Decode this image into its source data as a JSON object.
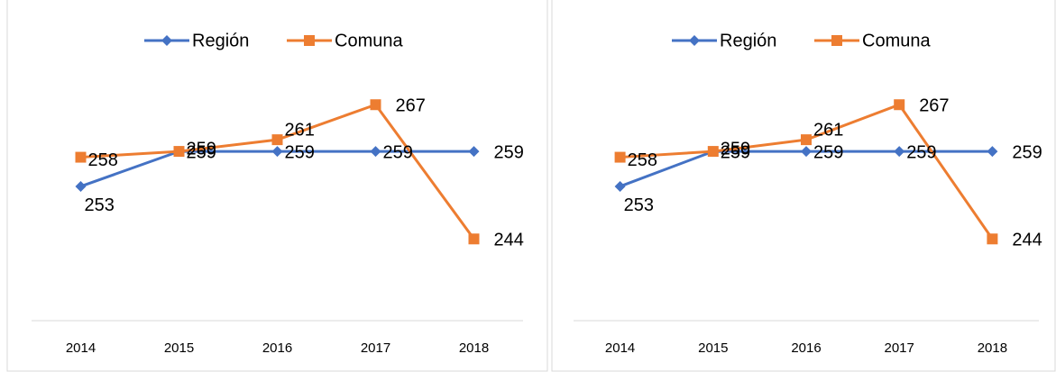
{
  "chart_data": [
    {
      "type": "line",
      "categories": [
        "2014",
        "2015",
        "2016",
        "2017",
        "2018"
      ],
      "series": [
        {
          "name": "Región",
          "color": "#4472c4",
          "values": [
            253,
            259,
            259,
            259,
            259
          ]
        },
        {
          "name": "Comuna",
          "color": "#ed7d31",
          "values": [
            258,
            259,
            261,
            267,
            244
          ]
        }
      ],
      "ylim": [
        230,
        280
      ],
      "legend": "top"
    },
    {
      "type": "line",
      "categories": [
        "2014",
        "2015",
        "2016",
        "2017",
        "2018"
      ],
      "series": [
        {
          "name": "Región",
          "color": "#4472c4",
          "values": [
            253,
            259,
            259,
            259,
            259
          ]
        },
        {
          "name": "Comuna",
          "color": "#ed7d31",
          "values": [
            258,
            259,
            261,
            267,
            244
          ]
        }
      ],
      "ylim": [
        230,
        280
      ],
      "legend": "top"
    }
  ]
}
